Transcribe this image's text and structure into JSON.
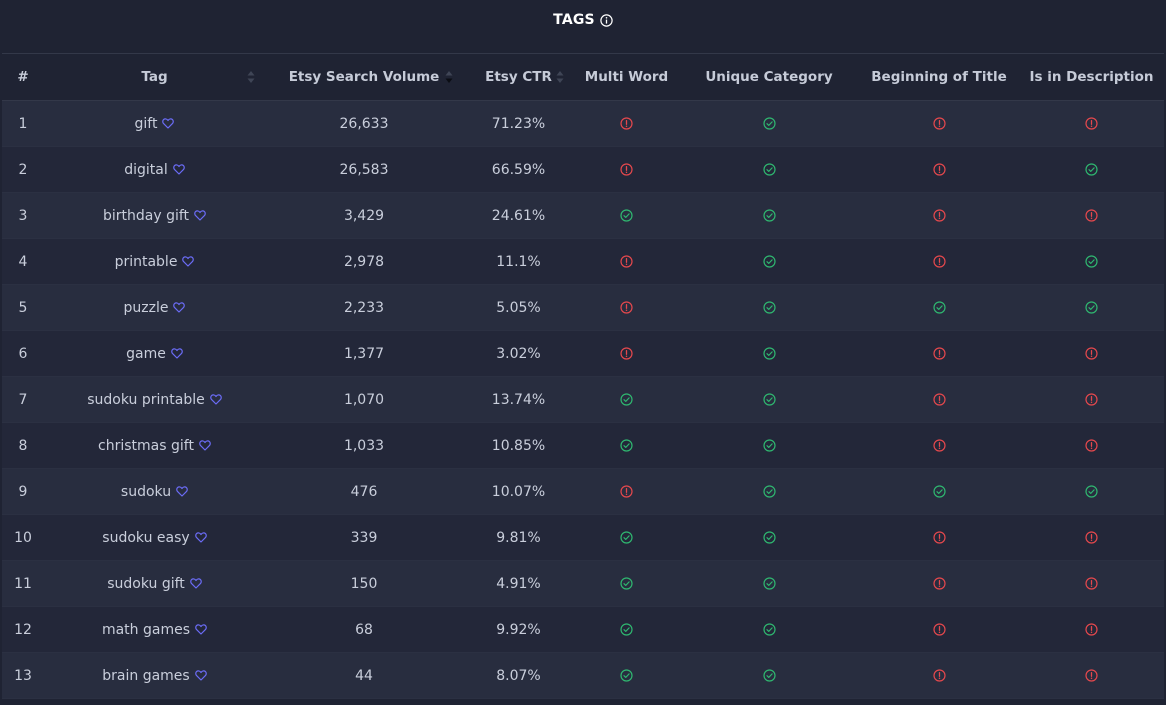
{
  "title": "TAGS",
  "colors": {
    "ok": "#2fb770",
    "bad": "#e5484d",
    "heart": "#6b6cf6"
  },
  "columns": {
    "num": "#",
    "tag": "Tag",
    "volume": "Etsy Search Volume",
    "ctr": "Etsy CTR",
    "multi": "Multi Word",
    "unique": "Unique Category",
    "begin": "Beginning of Title",
    "desc": "Is in Description"
  },
  "rows": [
    {
      "num": "1",
      "tag": "gift",
      "volume": "26,633",
      "ctr": "71.23%",
      "multi": false,
      "unique": true,
      "begin": false,
      "desc": false
    },
    {
      "num": "2",
      "tag": "digital",
      "volume": "26,583",
      "ctr": "66.59%",
      "multi": false,
      "unique": true,
      "begin": false,
      "desc": true
    },
    {
      "num": "3",
      "tag": "birthday gift",
      "volume": "3,429",
      "ctr": "24.61%",
      "multi": true,
      "unique": true,
      "begin": false,
      "desc": false
    },
    {
      "num": "4",
      "tag": "printable",
      "volume": "2,978",
      "ctr": "11.1%",
      "multi": false,
      "unique": true,
      "begin": false,
      "desc": true
    },
    {
      "num": "5",
      "tag": "puzzle",
      "volume": "2,233",
      "ctr": "5.05%",
      "multi": false,
      "unique": true,
      "begin": true,
      "desc": true
    },
    {
      "num": "6",
      "tag": "game",
      "volume": "1,377",
      "ctr": "3.02%",
      "multi": false,
      "unique": true,
      "begin": false,
      "desc": false
    },
    {
      "num": "7",
      "tag": "sudoku printable",
      "volume": "1,070",
      "ctr": "13.74%",
      "multi": true,
      "unique": true,
      "begin": false,
      "desc": false
    },
    {
      "num": "8",
      "tag": "christmas gift",
      "volume": "1,033",
      "ctr": "10.85%",
      "multi": true,
      "unique": true,
      "begin": false,
      "desc": false
    },
    {
      "num": "9",
      "tag": "sudoku",
      "volume": "476",
      "ctr": "10.07%",
      "multi": false,
      "unique": true,
      "begin": true,
      "desc": true
    },
    {
      "num": "10",
      "tag": "sudoku easy",
      "volume": "339",
      "ctr": "9.81%",
      "multi": true,
      "unique": true,
      "begin": false,
      "desc": false
    },
    {
      "num": "11",
      "tag": "sudoku gift",
      "volume": "150",
      "ctr": "4.91%",
      "multi": true,
      "unique": true,
      "begin": false,
      "desc": false
    },
    {
      "num": "12",
      "tag": "math games",
      "volume": "68",
      "ctr": "9.92%",
      "multi": true,
      "unique": true,
      "begin": false,
      "desc": false
    },
    {
      "num": "13",
      "tag": "brain games",
      "volume": "44",
      "ctr": "8.07%",
      "multi": true,
      "unique": true,
      "begin": false,
      "desc": false
    }
  ],
  "icons": {
    "title_info": "info-icon",
    "favorite": "heart-icon",
    "ok": "check-circle-icon",
    "bad": "alert-circle-icon",
    "sort": "sort-icon"
  }
}
